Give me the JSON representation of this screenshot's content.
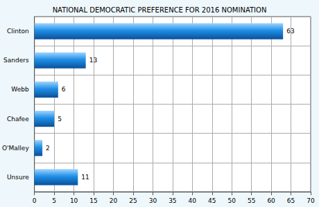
{
  "chart_data": {
    "type": "bar",
    "title": "NATIONAL DEMOCRATIC PREFERENCE FOR 2016 NOMINATION",
    "orientation": "horizontal",
    "categories": [
      "Clinton",
      "Sanders",
      "Webb",
      "Chafee",
      "O'Malley",
      "Unsure"
    ],
    "values": [
      63,
      13,
      6,
      5,
      2,
      11
    ],
    "color": "#1e8fe6",
    "xlim": [
      0,
      70
    ],
    "xticks": [
      0,
      5,
      10,
      15,
      20,
      25,
      30,
      35,
      40,
      45,
      50,
      55,
      60,
      65,
      70
    ],
    "grid": true,
    "data_labels": true
  }
}
